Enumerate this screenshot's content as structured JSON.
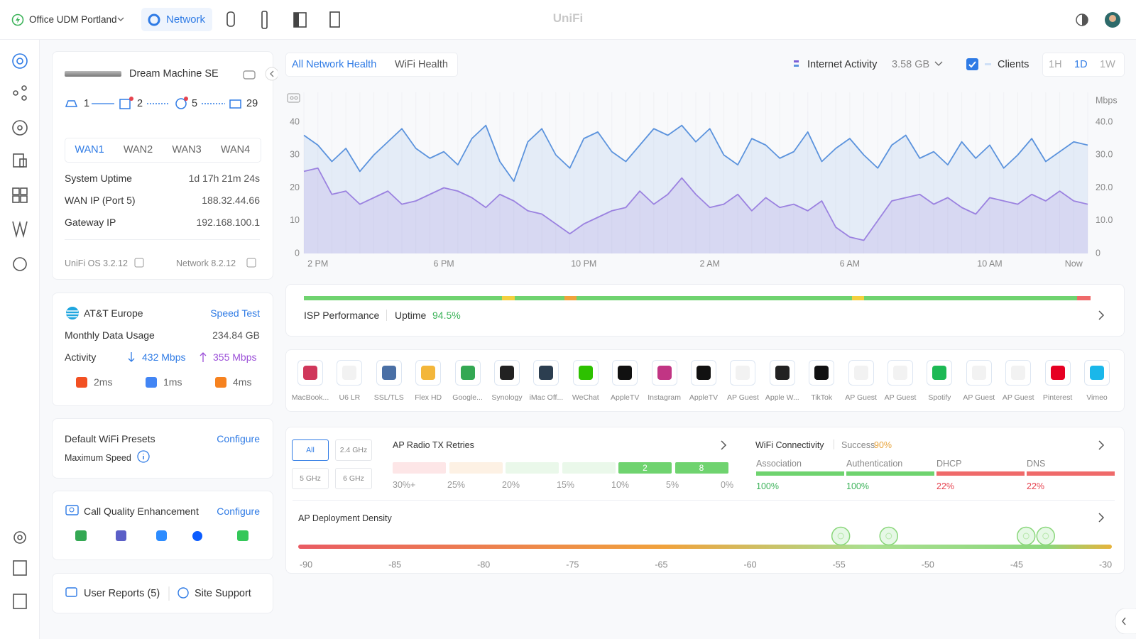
{
  "topbar": {
    "site": "Office UDM Portland",
    "app": "Network",
    "brand": "UniFi"
  },
  "device": {
    "name": "Dream Machine SE",
    "topology": [
      1,
      2,
      5,
      29
    ],
    "wan_tabs": [
      "WAN1",
      "WAN2",
      "WAN3",
      "WAN4"
    ],
    "rows": [
      [
        "System Uptime",
        "1d 17h 21m 24s"
      ],
      [
        "WAN IP (Port 5)",
        "188.32.44.66"
      ],
      [
        "Gateway IP",
        "192.168.100.1"
      ]
    ],
    "os": "UniFi OS 3.2.12",
    "network_version": "Network 8.2.12"
  },
  "isp": {
    "name": "AT&T Europe",
    "speed_test": "Speed Test",
    "usage_label": "Monthly Data Usage",
    "usage": "234.84 GB",
    "activity_label": "Activity",
    "download": "432 Mbps",
    "upload": "355 Mbps",
    "latency": [
      "2ms",
      "1ms",
      "4ms"
    ]
  },
  "wifi_presets": {
    "title": "Default WiFi Presets",
    "action": "Configure",
    "subtitle": "Maximum Speed"
  },
  "call_quality": {
    "title": "Call Quality Enhancement",
    "action": "Configure"
  },
  "footer_links": [
    "User Reports (5)",
    "Site Support"
  ],
  "health_tabs": [
    "All Network Health",
    "WiFi Health"
  ],
  "activity_total": "3.58 GB",
  "ranges": [
    "1H",
    "1D",
    "1W"
  ],
  "chart_data": {
    "type": "line",
    "y2_label": "Mbps",
    "categories": [
      null,
      "2 PM",
      null,
      null,
      null,
      null,
      null,
      null,
      null,
      null,
      "6 PM",
      null,
      null,
      null,
      null,
      null,
      null,
      null,
      null,
      null,
      "10 PM",
      null,
      null,
      null,
      null,
      null,
      null,
      null,
      null,
      "2 AM",
      null,
      null,
      null,
      null,
      null,
      null,
      null,
      null,
      null,
      "6 AM",
      null,
      null,
      null,
      null,
      null,
      null,
      null,
      null,
      null,
      "10 AM",
      null,
      null,
      null,
      null,
      null,
      "Now",
      null
    ],
    "series": [
      {
        "name": "Internet Activity",
        "color": "#9b82e0",
        "axis": "y2",
        "values": [
          25,
          26,
          18,
          19,
          15,
          17,
          19,
          15,
          16,
          18,
          20,
          19,
          17,
          14,
          18,
          16,
          13,
          12,
          9,
          6,
          9,
          11,
          13,
          14,
          19,
          15,
          18,
          23,
          18,
          14,
          15,
          18,
          13,
          17,
          14,
          15,
          13,
          16,
          8,
          5,
          4,
          10,
          16,
          17,
          18,
          15,
          17,
          14,
          12,
          17,
          16,
          15,
          18,
          16,
          19,
          16,
          15
        ]
      },
      {
        "name": "Clients",
        "color": "#5b93dd",
        "values": [
          36,
          33,
          28,
          32,
          25,
          30,
          34,
          38,
          32,
          29,
          31,
          27,
          35,
          39,
          28,
          22,
          34,
          38,
          30,
          26,
          35,
          37,
          31,
          28,
          33,
          38,
          36,
          39,
          34,
          38,
          30,
          27,
          35,
          33,
          29,
          31,
          37,
          28,
          32,
          35,
          30,
          26,
          33,
          36,
          29,
          31,
          27,
          34,
          29,
          33,
          26,
          30,
          35,
          28,
          31,
          34,
          33
        ]
      }
    ],
    "ylim": [
      0,
      40
    ],
    "yticks": [
      0,
      10,
      20,
      30,
      40
    ],
    "y2lim": [
      0,
      40
    ],
    "y2ticks": [
      0,
      {
        "value": 10,
        "label": "10.0"
      },
      {
        "value": 20,
        "label": "20.0"
      },
      {
        "value": 30,
        "label": "30.0"
      },
      {
        "value": 40,
        "label": "40.0"
      }
    ]
  },
  "isp_performance": {
    "title": "ISP Performance",
    "uptime_label": "Uptime",
    "uptime": "94.5%"
  },
  "clients": [
    "MacBook...",
    "U6 LR",
    "SSL/TLS",
    "Flex HD",
    "Google...",
    "Synology",
    "iMac Off...",
    "WeChat",
    "AppleTV",
    "Instagram",
    "AppleTV",
    "AP Guest",
    "Apple W...",
    "TikTok",
    "AP Guest",
    "AP Guest",
    "Spotify",
    "AP Guest",
    "AP Guest",
    "Pinterest",
    "Vimeo"
  ],
  "tx_retries": {
    "bands": [
      "All",
      "2.4 GHz",
      "5 GHz",
      "6 GHz"
    ],
    "title": "AP Radio TX Retries",
    "buckets": [
      "30%+",
      "25%",
      "20%",
      "15%",
      "10%",
      "5%",
      "0%"
    ],
    "counts": [
      null,
      null,
      null,
      null,
      2,
      8
    ]
  },
  "wifi_connectivity": {
    "title": "WiFi Connectivity",
    "success_label": "Success",
    "success": "90%",
    "steps": [
      {
        "name": "Association",
        "value": "100%"
      },
      {
        "name": "Authentication",
        "value": "100%"
      },
      {
        "name": "DHCP",
        "value": "22%"
      },
      {
        "name": "DNS",
        "value": "22%"
      }
    ]
  },
  "ap_density": {
    "title": "AP Deployment Density",
    "ticks": [
      -90,
      -85,
      -80,
      -75,
      -65,
      -60,
      -55,
      -50,
      -45,
      -30
    ],
    "points": [
      -54.9,
      -52.2,
      -43.4,
      -40.1
    ]
  }
}
